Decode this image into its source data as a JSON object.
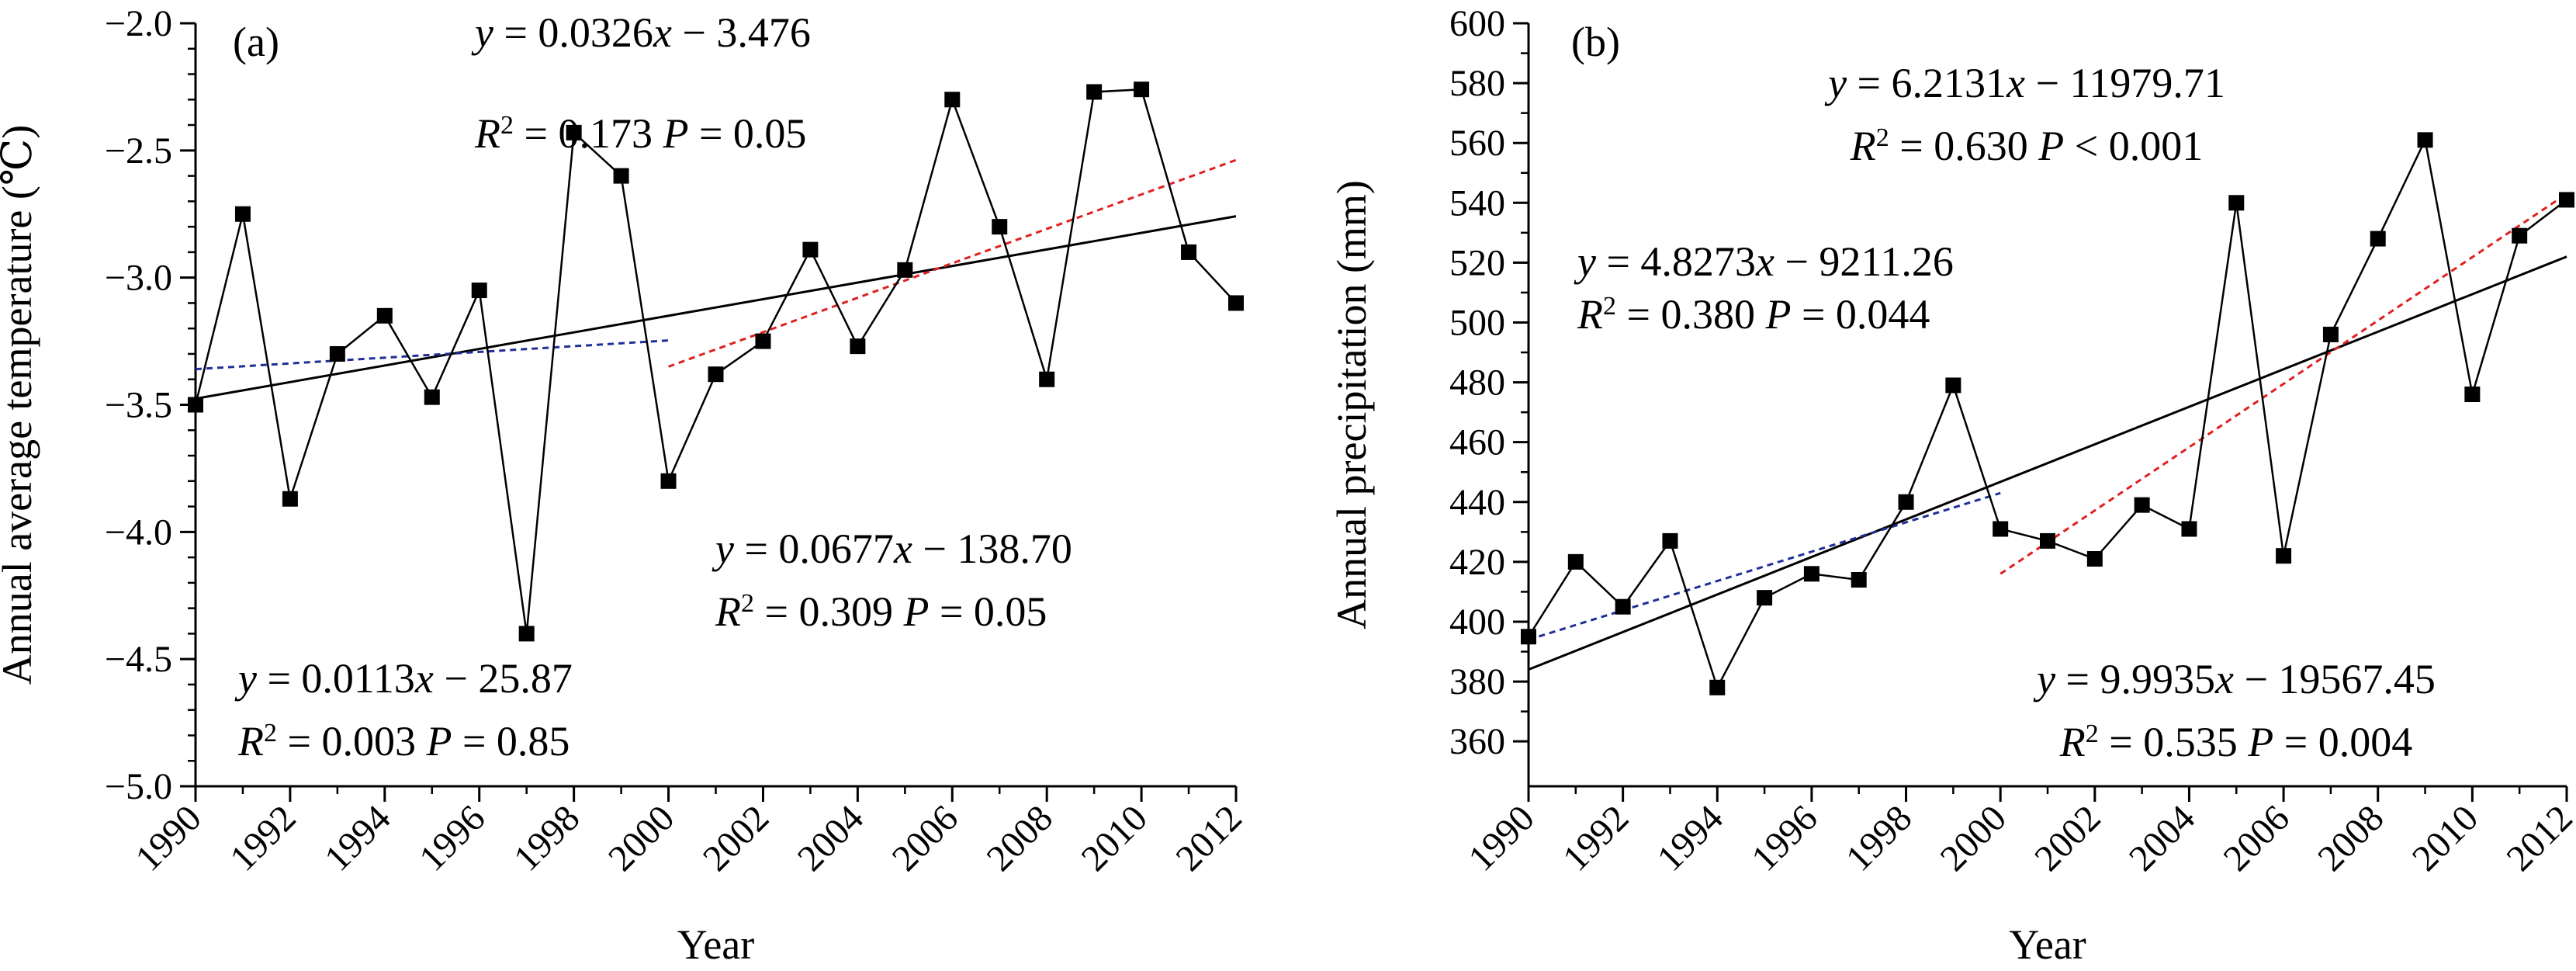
{
  "chart_data": [
    {
      "type": "line",
      "panel_label": "(a)",
      "xlabel": "Year",
      "ylabel": "Annual average temperature (℃)",
      "xlim": [
        1990,
        2012
      ],
      "ylim": [
        -5.0,
        -2.0
      ],
      "x_ticks": [
        1990,
        1992,
        1994,
        1996,
        1998,
        2000,
        2002,
        2004,
        2006,
        2008,
        2010,
        2012
      ],
      "y_ticks": [
        -5.0,
        -4.5,
        -4.0,
        -3.5,
        -3.0,
        -2.5,
        -2.0
      ],
      "y_tick_labels": [
        "−5.0",
        "−4.5",
        "−4.0",
        "−3.5",
        "−3.0",
        "−2.5",
        "−2.0"
      ],
      "y_minor_step": 0.1,
      "grid": false,
      "series": [
        {
          "style": "line-square-markers",
          "color": "#000000",
          "x": [
            1990,
            1991,
            1992,
            1993,
            1994,
            1995,
            1996,
            1997,
            1998,
            1999,
            2000,
            2001,
            2002,
            2003,
            2004,
            2005,
            2006,
            2007,
            2008,
            2009,
            2010,
            2011,
            2012
          ],
          "y": [
            -3.5,
            -2.75,
            -3.87,
            -3.3,
            -3.15,
            -3.47,
            -3.05,
            -4.4,
            -2.43,
            -2.6,
            -3.8,
            -3.38,
            -3.25,
            -2.89,
            -3.27,
            -2.97,
            -2.3,
            -2.8,
            -3.4,
            -2.27,
            -2.26,
            -2.9,
            -3.1
          ]
        }
      ],
      "trend_lines": [
        {
          "style": "solid",
          "color": "#000000",
          "x": [
            1990,
            2012
          ],
          "y": [
            -3.476,
            -2.7588
          ]
        },
        {
          "style": "dashed",
          "color": "#1f2f99",
          "x": [
            1990,
            2000
          ],
          "y": [
            -3.36,
            -3.247
          ]
        },
        {
          "style": "dashed",
          "color": "#e02020",
          "x": [
            2000,
            2012
          ],
          "y": [
            -3.35,
            -2.5376
          ]
        }
      ],
      "annotations": [
        {
          "anchor": "start",
          "lines": [
            [
              {
                "t": "y",
                "italic": true
              },
              {
                "t": " = 0.0326"
              },
              {
                "t": "x",
                "italic": true
              },
              {
                "t": " − 3.476"
              }
            ],
            [
              {
                "t": "R",
                "italic": true
              },
              {
                "t": "2",
                "sup": true
              },
              {
                "t": " = 0.173 "
              },
              {
                "t": "P",
                "italic": true
              },
              {
                "t": " = 0.05"
              }
            ]
          ]
        },
        {
          "anchor": "start",
          "lines": [
            [
              {
                "t": "y",
                "italic": true
              },
              {
                "t": " = 0.0677"
              },
              {
                "t": "x",
                "italic": true
              },
              {
                "t": " − 138.70"
              }
            ],
            [
              {
                "t": "R",
                "italic": true
              },
              {
                "t": "2",
                "sup": true
              },
              {
                "t": " = 0.309 "
              },
              {
                "t": "P",
                "italic": true
              },
              {
                "t": " = 0.05"
              }
            ]
          ]
        },
        {
          "anchor": "start",
          "lines": [
            [
              {
                "t": "y",
                "italic": true
              },
              {
                "t": " = 0.0113"
              },
              {
                "t": "x",
                "italic": true
              },
              {
                "t": " − 25.87"
              }
            ],
            [
              {
                "t": "R",
                "italic": true
              },
              {
                "t": "2",
                "sup": true
              },
              {
                "t": " = 0.003 "
              },
              {
                "t": "P",
                "italic": true
              },
              {
                "t": " = 0.85"
              }
            ]
          ]
        }
      ]
    },
    {
      "type": "line",
      "panel_label": "(b)",
      "xlabel": "Year",
      "ylabel": "Annual precipitation (mm)",
      "xlim": [
        1990,
        2012
      ],
      "ylim": [
        345,
        600
      ],
      "x_ticks": [
        1990,
        1992,
        1994,
        1996,
        1998,
        2000,
        2002,
        2004,
        2006,
        2008,
        2010,
        2012
      ],
      "y_ticks": [
        360,
        380,
        400,
        420,
        440,
        460,
        480,
        500,
        520,
        540,
        560,
        580,
        600
      ],
      "y_tick_labels": [
        "360",
        "380",
        "400",
        "420",
        "440",
        "460",
        "480",
        "500",
        "520",
        "540",
        "560",
        "580",
        "600"
      ],
      "y_minor_step": 10,
      "grid": false,
      "series": [
        {
          "style": "line-square-markers",
          "color": "#000000",
          "x": [
            1990,
            1991,
            1992,
            1993,
            1994,
            1995,
            1996,
            1997,
            1998,
            1999,
            2000,
            2001,
            2002,
            2003,
            2004,
            2005,
            2006,
            2007,
            2008,
            2009,
            2010,
            2011,
            2012
          ],
          "y": [
            395,
            420,
            405,
            427,
            378,
            408,
            416,
            414,
            440,
            479,
            431,
            427,
            421,
            439,
            431,
            540,
            422,
            496,
            528,
            561,
            476,
            529,
            541
          ]
        }
      ],
      "trend_lines": [
        {
          "style": "solid",
          "color": "#000000",
          "x": [
            1990,
            2012
          ],
          "y": [
            384,
            522
          ]
        },
        {
          "style": "dashed",
          "color": "#1f2f99",
          "x": [
            1990,
            2000
          ],
          "y": [
            394,
            443
          ]
        },
        {
          "style": "dashed",
          "color": "#e02020",
          "x": [
            2000,
            2012
          ],
          "y": [
            416,
            543
          ]
        }
      ],
      "annotations": [
        {
          "anchor": "middle",
          "lines": [
            [
              {
                "t": "y",
                "italic": true
              },
              {
                "t": " = 6.2131"
              },
              {
                "t": "x",
                "italic": true
              },
              {
                "t": " − 11979.71"
              }
            ],
            [
              {
                "t": "R",
                "italic": true
              },
              {
                "t": "2",
                "sup": true
              },
              {
                "t": " = 0.630 "
              },
              {
                "t": "P",
                "italic": true
              },
              {
                "t": " < 0.001"
              }
            ]
          ]
        },
        {
          "anchor": "start",
          "lines": [
            [
              {
                "t": "y",
                "italic": true
              },
              {
                "t": " = 4.8273"
              },
              {
                "t": "x",
                "italic": true
              },
              {
                "t": " − 9211.26"
              }
            ],
            [
              {
                "t": "R",
                "italic": true
              },
              {
                "t": "2",
                "sup": true
              },
              {
                "t": " = 0.380 "
              },
              {
                "t": "P",
                "italic": true
              },
              {
                "t": " = 0.044"
              }
            ]
          ]
        },
        {
          "anchor": "middle",
          "lines": [
            [
              {
                "t": "y",
                "italic": true
              },
              {
                "t": " = 9.9935"
              },
              {
                "t": "x",
                "italic": true
              },
              {
                "t": " − 19567.45"
              }
            ],
            [
              {
                "t": "R",
                "italic": true
              },
              {
                "t": "2",
                "sup": true
              },
              {
                "t": " = 0.535 "
              },
              {
                "t": "P",
                "italic": true
              },
              {
                "t": " = 0.004"
              }
            ]
          ]
        }
      ]
    }
  ]
}
